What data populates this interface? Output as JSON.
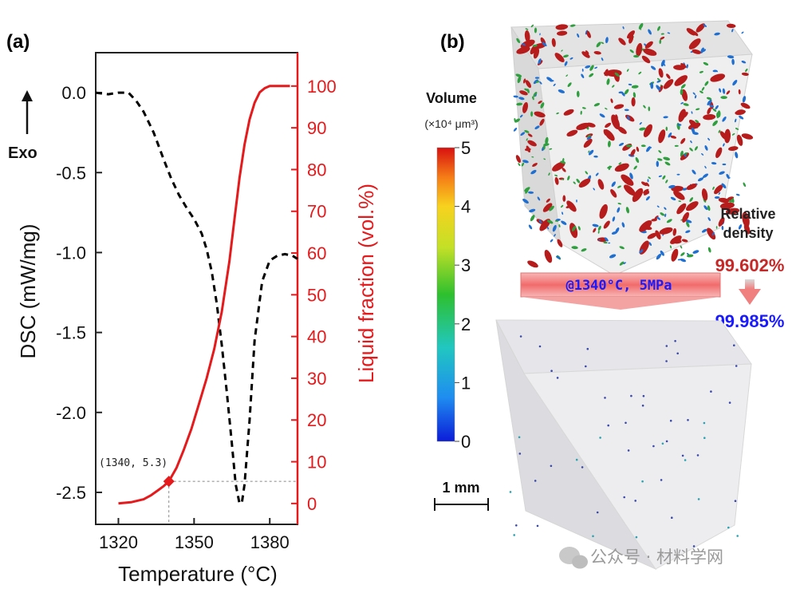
{
  "panel_a": {
    "label": "(a)",
    "exo_label": "Exo",
    "annotation": "(1340, 5.3)"
  },
  "panel_b": {
    "label": "(b)",
    "colorbar": {
      "title": "Volume",
      "unit": "(×10⁴ μm³)",
      "ticks": [
        "5",
        "4",
        "3",
        "2",
        "1",
        "0"
      ],
      "min": 0,
      "max": 5
    },
    "scale_bar": "1 mm",
    "arrow_label": "@1340°C, 5MPa",
    "relative_density_label_1": "Relative",
    "relative_density_label_2": "density",
    "density_before": "99.602%",
    "density_after": "99.985%",
    "colors": {
      "before": "#c62828",
      "after": "#1a1aff",
      "pore_red": "#b71c1c",
      "pore_green": "#2e9e3e",
      "pore_blue": "#1f6fd1"
    }
  },
  "watermark": "公众号 · 材料学网",
  "chart_data": {
    "type": "line",
    "xlabel": "Temperature (°C)",
    "ylabel_left": "DSC (mW/mg)",
    "ylabel_right": "Liquid fraction (vol.%)",
    "xlim": [
      1311,
      1391
    ],
    "ylim_left": [
      -2.7,
      0.25
    ],
    "ylim_right": [
      -5,
      108
    ],
    "xticks": [
      1320,
      1350,
      1380
    ],
    "yticks_left": [
      "0.0",
      "-0.5",
      "-1.0",
      "-1.5",
      "-2.0",
      "-2.5"
    ],
    "yticks_left_values": [
      0.0,
      -0.5,
      -1.0,
      -1.5,
      -2.0,
      -2.5
    ],
    "yticks_right": [
      "100",
      "90",
      "80",
      "70",
      "60",
      "50",
      "40",
      "30",
      "20",
      "10",
      "0"
    ],
    "yticks_right_values": [
      100,
      90,
      80,
      70,
      60,
      50,
      40,
      30,
      20,
      10,
      0
    ],
    "series": [
      {
        "axis": "left",
        "style": "dashed",
        "color": "#000000",
        "x": [
          1311,
          1316,
          1320,
          1324,
          1327,
          1330,
          1334,
          1338,
          1341,
          1344,
          1347,
          1350,
          1353,
          1355,
          1357,
          1359,
          1361,
          1363,
          1365,
          1366.5,
          1368,
          1369,
          1370,
          1372,
          1374,
          1377,
          1380,
          1383,
          1386,
          1389,
          1391
        ],
        "y": [
          0.0,
          -0.01,
          0.0,
          0.0,
          -0.05,
          -0.12,
          -0.25,
          -0.42,
          -0.54,
          -0.64,
          -0.72,
          -0.79,
          -0.88,
          -0.98,
          -1.12,
          -1.32,
          -1.58,
          -1.88,
          -2.2,
          -2.45,
          -2.57,
          -2.56,
          -2.45,
          -2.05,
          -1.55,
          -1.18,
          -1.05,
          -1.02,
          -1.01,
          -1.02,
          -1.04
        ]
      },
      {
        "axis": "right",
        "style": "solid",
        "color": "#e41a1c",
        "x": [
          1320,
          1325,
          1330,
          1333,
          1336,
          1338,
          1340,
          1343,
          1346,
          1349,
          1352,
          1355,
          1358,
          1361,
          1364,
          1366,
          1368,
          1370,
          1372,
          1374,
          1376,
          1378,
          1380,
          1382,
          1384,
          1386,
          1388
        ],
        "y": [
          0,
          0.3,
          1.0,
          2.0,
          3.3,
          4.2,
          5.3,
          8.5,
          13,
          18,
          24,
          30,
          37,
          46,
          58,
          68,
          78,
          86,
          92,
          96,
          98.5,
          99.5,
          100,
          100,
          100,
          100,
          100
        ]
      }
    ],
    "marker": {
      "x": 1340,
      "y": 5.3,
      "axis": "right"
    }
  }
}
